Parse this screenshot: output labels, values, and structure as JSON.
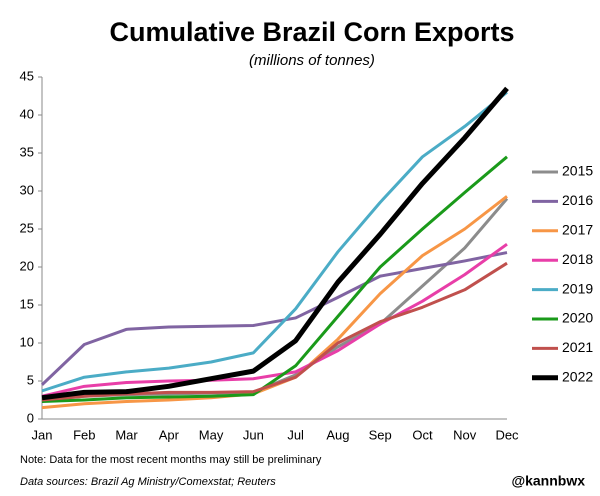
{
  "chart_data": {
    "type": "line",
    "title": "Cumulative Brazil Corn Exports",
    "subtitle": "(millions of tonnes)",
    "note": "Note: Data for the most recent months may still be preliminary",
    "source": "Data sources: Brazil Ag Ministry/Comexstat; Reuters",
    "credit": "@kannbwx",
    "categories": [
      "Jan",
      "Feb",
      "Mar",
      "Apr",
      "May",
      "Jun",
      "Jul",
      "Aug",
      "Sep",
      "Oct",
      "Nov",
      "Dec"
    ],
    "series": [
      {
        "name": "2015",
        "color": "#8c8c8c",
        "values": [
          2.5,
          3,
          3.2,
          3.3,
          3.4,
          3.5,
          5.8,
          9.5,
          12.5,
          17.5,
          22.5,
          29
        ]
      },
      {
        "name": "2016",
        "color": "#8064a2",
        "values": [
          4.5,
          9.8,
          11.8,
          12.1,
          12.2,
          12.3,
          13.3,
          16,
          18.8,
          19.8,
          20.8,
          21.9
        ]
      },
      {
        "name": "2017",
        "color": "#f79646",
        "values": [
          1.5,
          2,
          2.3,
          2.5,
          2.8,
          3.3,
          5.5,
          10.5,
          16.5,
          21.5,
          25,
          29.3
        ]
      },
      {
        "name": "2018",
        "color": "#e83ea8",
        "values": [
          3,
          4.3,
          4.8,
          5,
          5.1,
          5.3,
          6.2,
          9,
          12.5,
          15.5,
          19,
          23
        ]
      },
      {
        "name": "2019",
        "color": "#4bacc6",
        "values": [
          3.7,
          5.5,
          6.2,
          6.7,
          7.5,
          8.7,
          14.5,
          22,
          28.5,
          34.5,
          38.5,
          43
        ]
      },
      {
        "name": "2020",
        "color": "#1a9a1a",
        "values": [
          2.3,
          2.5,
          2.8,
          2.9,
          3,
          3.2,
          7,
          13.5,
          20,
          25,
          29.8,
          34.5
        ]
      },
      {
        "name": "2021",
        "color": "#c0504d",
        "values": [
          2.5,
          3,
          3.3,
          3.5,
          3.5,
          3.6,
          5.5,
          10,
          12.8,
          14.7,
          17,
          20.5
        ]
      },
      {
        "name": "2022",
        "color": "#000000",
        "values": [
          2.8,
          3.5,
          3.6,
          4.3,
          5.3,
          6.3,
          10.3,
          18,
          24.3,
          31,
          37,
          43.5
        ]
      }
    ],
    "ylim": [
      0,
      45
    ],
    "yticks": [
      0,
      5,
      10,
      15,
      20,
      25,
      30,
      35,
      40,
      45
    ],
    "grid": false
  }
}
